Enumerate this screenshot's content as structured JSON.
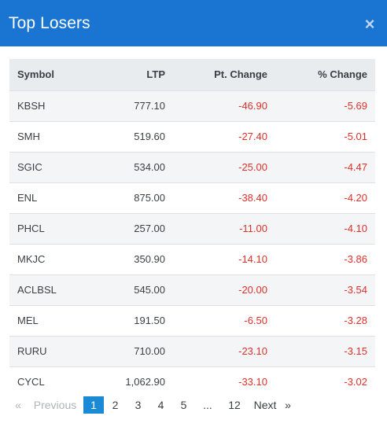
{
  "header": {
    "title": "Top Losers",
    "close_label": "×"
  },
  "table": {
    "columns": {
      "symbol": "Symbol",
      "ltp": "LTP",
      "pt_change": "Pt. Change",
      "pct_change": "% Change"
    },
    "rows": [
      {
        "symbol": "KBSH",
        "ltp": "777.10",
        "pt_change": "-46.90",
        "pct_change": "-5.69"
      },
      {
        "symbol": "SMH",
        "ltp": "519.60",
        "pt_change": "-27.40",
        "pct_change": "-5.01"
      },
      {
        "symbol": "SGIC",
        "ltp": "534.00",
        "pt_change": "-25.00",
        "pct_change": "-4.47"
      },
      {
        "symbol": "ENL",
        "ltp": "875.00",
        "pt_change": "-38.40",
        "pct_change": "-4.20"
      },
      {
        "symbol": "PHCL",
        "ltp": "257.00",
        "pt_change": "-11.00",
        "pct_change": "-4.10"
      },
      {
        "symbol": "MKJC",
        "ltp": "350.90",
        "pt_change": "-14.10",
        "pct_change": "-3.86"
      },
      {
        "symbol": "ACLBSL",
        "ltp": "545.00",
        "pt_change": "-20.00",
        "pct_change": "-3.54"
      },
      {
        "symbol": "MEL",
        "ltp": "191.50",
        "pt_change": "-6.50",
        "pct_change": "-3.28"
      },
      {
        "symbol": "RURU",
        "ltp": "710.00",
        "pt_change": "-23.10",
        "pct_change": "-3.15"
      },
      {
        "symbol": "CYCL",
        "ltp": "1,062.90",
        "pt_change": "-33.10",
        "pct_change": "-3.02"
      }
    ]
  },
  "pagination": {
    "first": "«",
    "previous": "Previous",
    "pages": [
      "1",
      "2",
      "3",
      "4",
      "5"
    ],
    "ellipsis": "...",
    "last_page": "12",
    "next": "Next",
    "last": "»",
    "current": "1"
  },
  "colors": {
    "header_bg": "#1a75d2",
    "negative": "#e0302a",
    "active_page": "#1a8ad6"
  }
}
